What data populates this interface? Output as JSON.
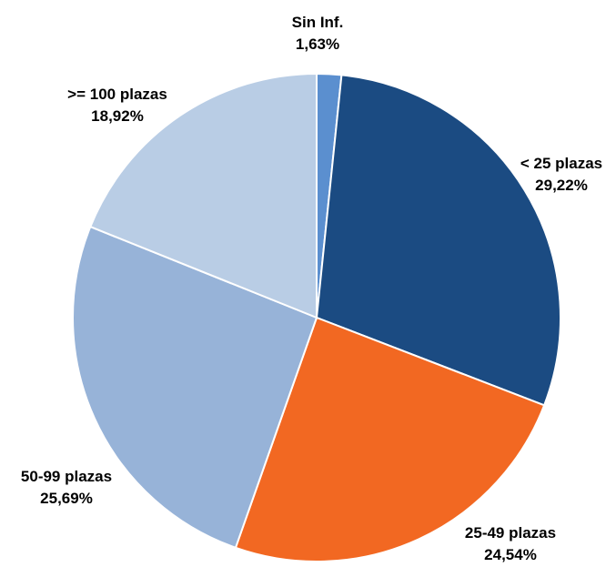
{
  "chart_data": {
    "type": "pie",
    "title": "",
    "start_angle_deg": 0,
    "direction": "clockwise",
    "slices": [
      {
        "name": "Sin Inf.",
        "value": 1.63,
        "label": "1,63%",
        "color": "#5b8fcf"
      },
      {
        "name": "< 25 plazas",
        "value": 29.22,
        "label": "29,22%",
        "color": "#1b4b82"
      },
      {
        "name": "25-49 plazas",
        "value": 24.54,
        "label": "24,54%",
        "color": "#f26822"
      },
      {
        "name": "50-99 plazas",
        "value": 25.69,
        "label": "25,69%",
        "color": "#97b3d8"
      },
      {
        "name": ">= 100 plazas",
        "value": 18.92,
        "label": "18,92%",
        "color": "#b9cde5"
      }
    ]
  }
}
